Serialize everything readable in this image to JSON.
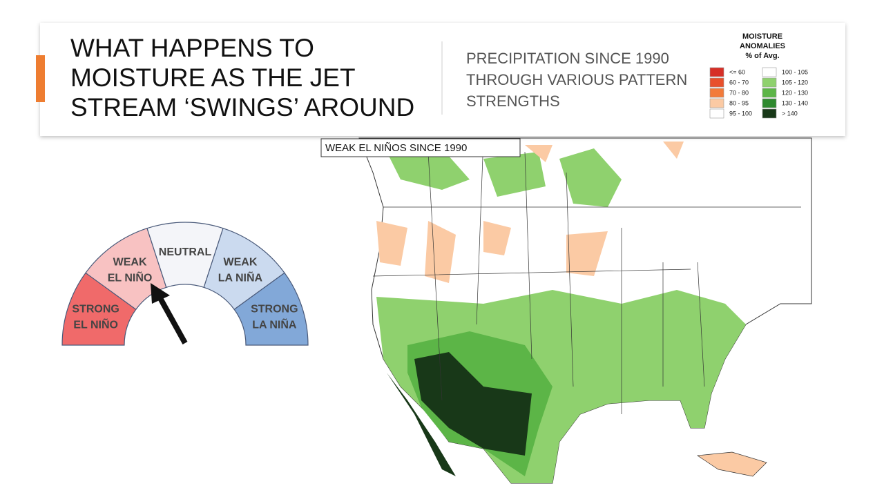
{
  "header": {
    "title": [
      "WHAT HAPPENS TO",
      "MOISTURE AS THE JET",
      "STREAM ‘SWINGS’ AROUND"
    ],
    "subtitle": [
      "PRECIPITATION SINCE 1990",
      "THROUGH VARIOUS PATTERN",
      "STRENGTHS"
    ]
  },
  "legend": {
    "title": [
      "MOISTURE",
      "ANOMALIES",
      "% of Avg."
    ],
    "items": [
      {
        "label": "<= 60",
        "color": "#d62f27"
      },
      {
        "label": "60 - 70",
        "color": "#e8502c"
      },
      {
        "label": "70 - 80",
        "color": "#f27b3b"
      },
      {
        "label": "80 - 95",
        "color": "#fbcaa4"
      },
      {
        "label": "95 - 100",
        "color": "#ffffff"
      },
      {
        "label": "100 - 105",
        "color": "#ffffff"
      },
      {
        "label": "105 - 120",
        "color": "#8fd16e"
      },
      {
        "label": "120 - 130",
        "color": "#5cb547"
      },
      {
        "label": "130 - 140",
        "color": "#2f8a2f"
      },
      {
        "label": "> 140",
        "color": "#183818"
      }
    ]
  },
  "map": {
    "label": "WEAK EL NIÑOS SINCE 1990"
  },
  "gauge": {
    "segments": [
      {
        "label": [
          "STRONG",
          "EL NIÑO"
        ],
        "color": "#f06a6a"
      },
      {
        "label": [
          "WEAK",
          "EL NIÑO"
        ],
        "color": "#f8c2c2"
      },
      {
        "label": [
          "NEUTRAL"
        ],
        "color": "#f4f5f9"
      },
      {
        "label": [
          "WEAK",
          "LA NIÑA"
        ],
        "color": "#cbdaef"
      },
      {
        "label": [
          "STRONG",
          "LA NIÑA"
        ],
        "color": "#82a8d8"
      }
    ]
  }
}
